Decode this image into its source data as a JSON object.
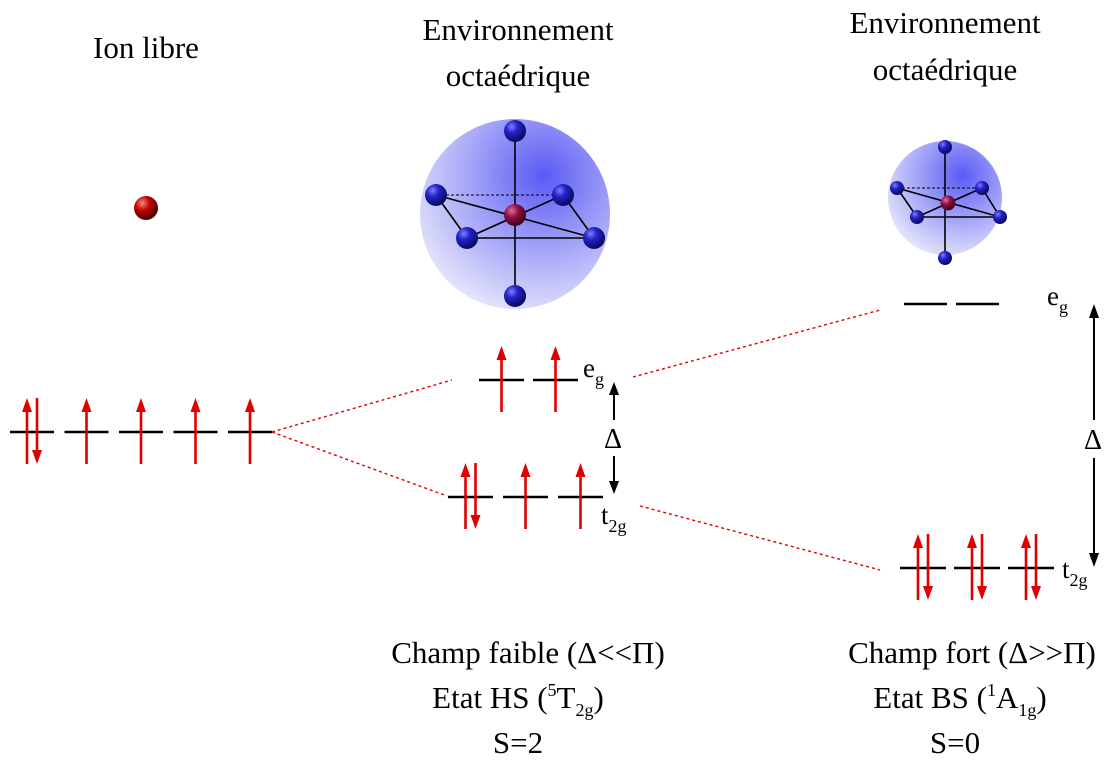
{
  "colors": {
    "arrow": "#e00000",
    "level": "#000000",
    "ligand": "#1a1ab8",
    "metal": "#8a1040",
    "free_ion": "#c00000",
    "sphere": "#7070ff"
  },
  "free_ion": {
    "title": "Ion libre",
    "levels": [
      "paired",
      "up",
      "up",
      "up",
      "up"
    ]
  },
  "weak_field": {
    "title_line1": "Environnement",
    "title_line2": "octaédrique",
    "eg_label_main": "e",
    "eg_label_sub": "g",
    "t2g_label_main": "t",
    "t2g_label_sub": "2g",
    "delta_label": "Δ",
    "eg_levels": [
      "up",
      "up"
    ],
    "t2g_levels": [
      "paired",
      "up",
      "up"
    ],
    "caption_line1": "Champ faible (Δ<<Π)",
    "caption_line2_a": "Etat HS (",
    "caption_line2_sup": "5",
    "caption_line2_b": "T",
    "caption_line2_sub": "2g",
    "caption_line2_c": ")",
    "caption_line3": "S=2"
  },
  "strong_field": {
    "title_line1": "Environnement",
    "title_line2": "octaédrique",
    "eg_label_main": "e",
    "eg_label_sub": "g",
    "t2g_label_main": "t",
    "t2g_label_sub": "2g",
    "delta_label": "Δ",
    "eg_levels": [
      "empty",
      "empty"
    ],
    "t2g_levels": [
      "paired",
      "paired",
      "paired"
    ],
    "caption_line1": "Champ fort (Δ>>Π)",
    "caption_line2_a": "Etat BS (",
    "caption_line2_sup": "1",
    "caption_line2_b": "A",
    "caption_line2_sub": "1g",
    "caption_line2_c": ")",
    "caption_line3": "S=0"
  }
}
